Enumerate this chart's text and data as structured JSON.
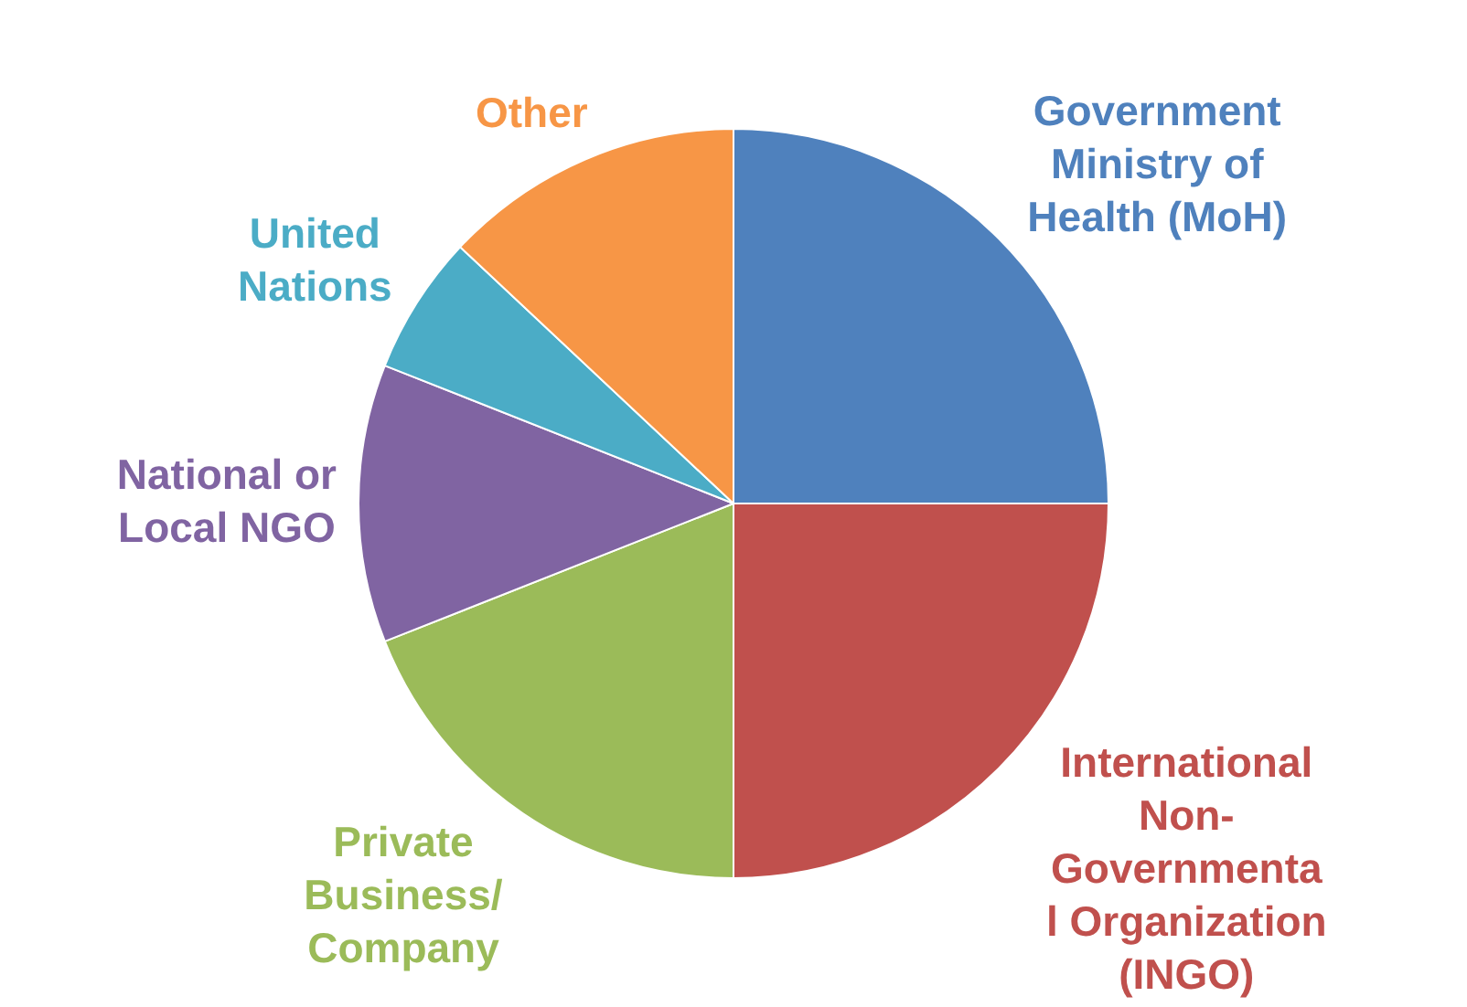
{
  "chart_data": {
    "type": "pie",
    "categories": [
      "Government\nMinistry of\nHealth (MoH)",
      "International\nNon-\nGovernmenta\nl Organization\n(INGO)",
      "Private\nBusiness/\nCompany",
      "National or\nLocal NGO",
      "United\nNations",
      "Other"
    ],
    "values": [
      25,
      25,
      19,
      12,
      6,
      13
    ],
    "colors": [
      "#4f81bd",
      "#c0504d",
      "#9bbb59",
      "#8064a2",
      "#4bacc6",
      "#f79646"
    ]
  }
}
